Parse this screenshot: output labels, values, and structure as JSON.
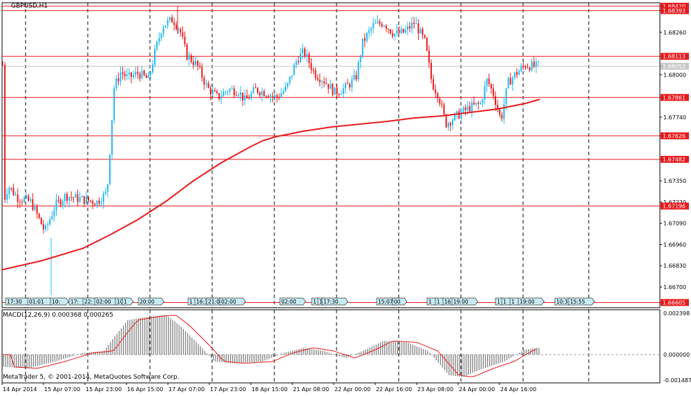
{
  "window": {
    "symbol_title": "GBPUSD,H1",
    "macd_title": "MACD(12,26,9) 0.000368 0.000265",
    "copyright": "MetaTrader 5, © 2001-2014, MetaQuotes Software Corp."
  },
  "price_axis_labels": [
    "1.68420",
    "1.68393",
    "1.68260",
    "1.68113",
    "1.68052",
    "1.68000",
    "1.67861",
    "1.67740",
    "1.67626",
    "1.67482",
    "1.67350",
    "1.67220",
    "1.67196",
    "1.67090",
    "1.66960",
    "1.66830",
    "1.66700",
    "1.66605"
  ],
  "hlines": [
    {
      "price": "1.68420",
      "color": "#e8191c"
    },
    {
      "price": "1.68393",
      "color": "#e8191c"
    },
    {
      "price": "1.68113",
      "color": "#e8191c"
    },
    {
      "price": "1.67861",
      "color": "#e8191c"
    },
    {
      "price": "1.67626",
      "color": "#e8191c"
    },
    {
      "price": "1.67482",
      "color": "#e8191c"
    },
    {
      "price": "1.67196",
      "color": "#e8191c"
    },
    {
      "price": "1.66605",
      "color": "#e8191c"
    }
  ],
  "current_price": "1.68052",
  "macd_axis_labels": [
    "0.002398",
    "0.000000",
    "-0.001487"
  ],
  "time_labels": [
    "14 Apr 2014",
    "15 Apr 07:00",
    "15 Apr 23:00",
    "16 Apr 15:00",
    "17 Apr 07:00",
    "17 Apr 23:00",
    "18 Apr 15:00",
    "21 Apr 08:00",
    "22 Apr 00:00",
    "22 Apr 16:00",
    "23 Apr 08:00",
    "24 Apr 00:00",
    "24 Apr 16:00"
  ],
  "event_flags": [
    "17:30",
    "01:01",
    "10:",
    "17:",
    "22:",
    "02:00",
    "10",
    "1",
    "20:00",
    "1",
    "16:3",
    "21:0",
    "02:00",
    "02:00",
    "1",
    "1",
    "17:30",
    "15:07",
    "00",
    "1",
    "1",
    "16",
    "19:00",
    "1",
    "1",
    "1",
    "19:00",
    "10:3",
    "15:55"
  ],
  "colors": {
    "bull": "#1fb8f0",
    "bear": "#e8191c",
    "ma": "#e8191c",
    "grid": "#000000",
    "histogram": "#808080",
    "signal": "#e8191c",
    "label_bg": "#e8191c",
    "label_text": "#ffffff",
    "current_bg": "#c8c8c8",
    "flag_bg": "#c8ecf4"
  }
}
